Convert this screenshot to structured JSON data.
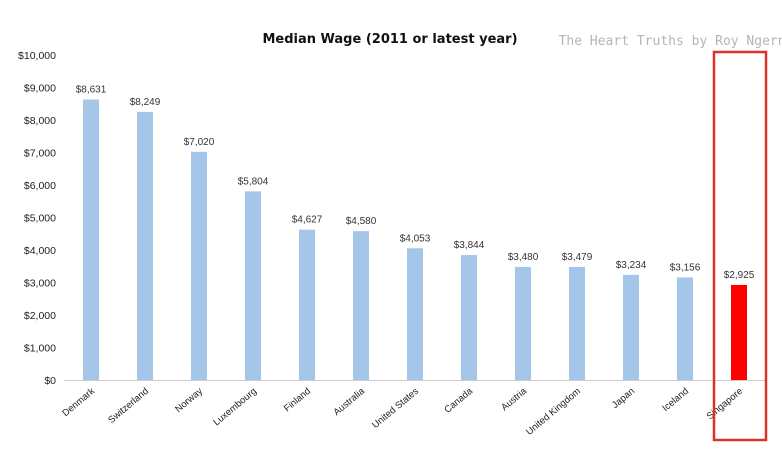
{
  "watermark": "The Heart Truths by Roy Ngerng",
  "colors": {
    "bar": "#a4c6e8",
    "highlight_bar": "#ff0000",
    "highlight_box": "#e0302a",
    "axis": "#cfcfcf"
  },
  "chart_data": {
    "type": "bar",
    "title": "Median Wage (2011 or latest year)",
    "xlabel": "",
    "ylabel": "",
    "categories": [
      "Denmark",
      "Switzerland",
      "Norway",
      "Luxembourg",
      "Finland",
      "Australia",
      "United States",
      "Canada",
      "Austria",
      "United Kingdom",
      "Japan",
      "Iceland",
      "Singapore"
    ],
    "values": [
      8631,
      8249,
      7020,
      5804,
      4627,
      4580,
      4053,
      3844,
      3480,
      3479,
      3234,
      3156,
      2925
    ],
    "data_labels": [
      "$8,631",
      "$8,249",
      "$7,020",
      "$5,804",
      "$4,627",
      "$4,580",
      "$4,053",
      "$3,844",
      "$3,480",
      "$3,479",
      "$3,234",
      "$3,156",
      "$2,925"
    ],
    "ylim": [
      0,
      10000
    ],
    "yticks": [
      0,
      1000,
      2000,
      3000,
      4000,
      5000,
      6000,
      7000,
      8000,
      9000,
      10000
    ],
    "ytick_labels": [
      "$0",
      "$1,000",
      "$2,000",
      "$3,000",
      "$4,000",
      "$5,000",
      "$6,000",
      "$7,000",
      "$8,000",
      "$9,000",
      "$10,000"
    ],
    "highlight_category": "Singapore",
    "grid": false,
    "legend": "none"
  }
}
